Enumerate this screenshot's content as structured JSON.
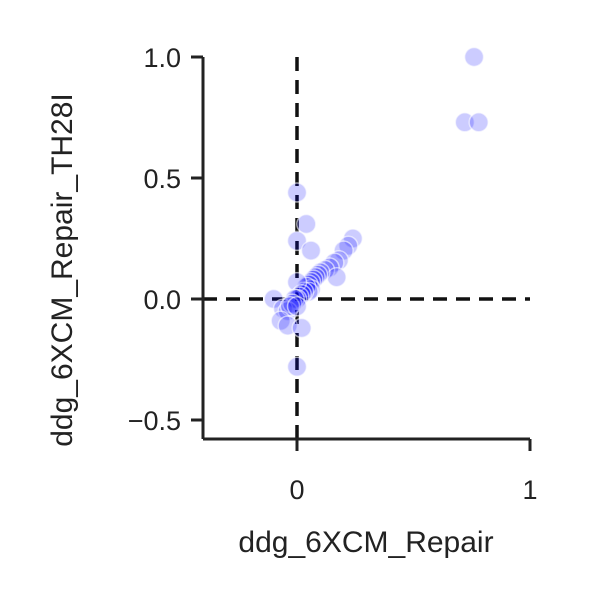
{
  "chart_data": {
    "type": "scatter",
    "xlabel": "ddg_6XCM_Repair",
    "ylabel": "ddg_6XCM_Repair_TH28I",
    "xlim": [
      -0.4,
      1.0
    ],
    "ylim": [
      -0.57,
      1.0
    ],
    "xticks": [
      0,
      1
    ],
    "xtick_labels": [
      "0",
      "1"
    ],
    "yticks": [
      -0.5,
      0.0,
      0.5,
      1.0
    ],
    "ytick_labels": [
      "−0.5",
      "0.0",
      "0.5",
      "1.0"
    ],
    "point_color": "#0000ff",
    "reference_lines": {
      "x": 0,
      "y": 0,
      "style": "dashed"
    },
    "points": [
      [
        0.76,
        1.0
      ],
      [
        0.72,
        0.73
      ],
      [
        0.78,
        0.73
      ],
      [
        0.0,
        0.44
      ],
      [
        0.04,
        0.31
      ],
      [
        0.0,
        0.24
      ],
      [
        0.06,
        0.2
      ],
      [
        0.24,
        0.25
      ],
      [
        0.22,
        0.22
      ],
      [
        0.2,
        0.2
      ],
      [
        0.18,
        0.16
      ],
      [
        0.16,
        0.15
      ],
      [
        0.14,
        0.13
      ],
      [
        0.12,
        0.12
      ],
      [
        0.17,
        0.09
      ],
      [
        0.1,
        0.11
      ],
      [
        0.09,
        0.1
      ],
      [
        0.08,
        0.09
      ],
      [
        0.07,
        0.08
      ],
      [
        0.06,
        0.07
      ],
      [
        0.05,
        0.06
      ],
      [
        0.06,
        0.04
      ],
      [
        0.04,
        0.05
      ],
      [
        0.05,
        0.03
      ],
      [
        0.03,
        0.03
      ],
      [
        0.0,
        0.07
      ],
      [
        0.02,
        0.02
      ],
      [
        0.01,
        0.01
      ],
      [
        0.0,
        0.0
      ],
      [
        -0.01,
        0.0
      ],
      [
        -0.1,
        0.0
      ],
      [
        -0.06,
        -0.04
      ],
      [
        -0.04,
        -0.05
      ],
      [
        -0.02,
        -0.02
      ],
      [
        -0.03,
        -0.03
      ],
      [
        0.0,
        -0.03
      ],
      [
        -0.07,
        -0.09
      ],
      [
        -0.04,
        -0.11
      ],
      [
        0.02,
        -0.12
      ],
      [
        0.0,
        -0.28
      ]
    ]
  }
}
